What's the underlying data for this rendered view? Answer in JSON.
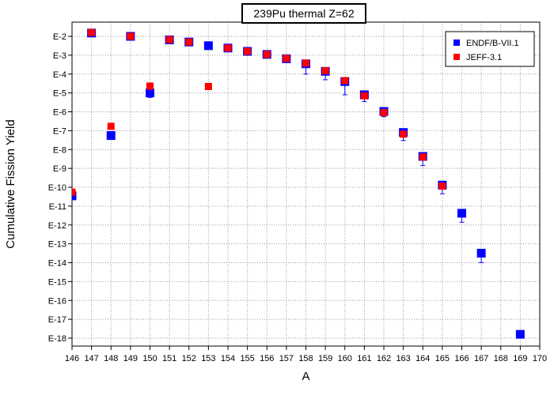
{
  "chart_data": {
    "type": "scatter",
    "title": "239Pu thermal Z=62",
    "xlabel": "A",
    "ylabel": "Cumulative Fission Yield",
    "x_scale": "linear",
    "y_scale": "log",
    "xlim": [
      146,
      170
    ],
    "ylim": [
      1e-18,
      0.01
    ],
    "x_ticks": [
      146,
      147,
      148,
      149,
      150,
      151,
      152,
      153,
      154,
      155,
      156,
      157,
      158,
      159,
      160,
      161,
      162,
      163,
      164,
      165,
      166,
      167,
      168,
      169,
      170
    ],
    "y_ticks": [
      {
        "value": 0.01,
        "label": "E-2"
      },
      {
        "value": 0.001,
        "label": "E-3"
      },
      {
        "value": 0.0001,
        "label": "E-4"
      },
      {
        "value": 1e-05,
        "label": "E-5"
      },
      {
        "value": 1e-06,
        "label": "E-6"
      },
      {
        "value": 1e-07,
        "label": "E-7"
      },
      {
        "value": 1e-08,
        "label": "E-8"
      },
      {
        "value": 1e-09,
        "label": "E-9"
      },
      {
        "value": 1e-10,
        "label": "E-10"
      },
      {
        "value": 1e-11,
        "label": "E-11"
      },
      {
        "value": 1e-12,
        "label": "E-12"
      },
      {
        "value": 1e-13,
        "label": "E-13"
      },
      {
        "value": 1e-14,
        "label": "E-14"
      },
      {
        "value": 1e-15,
        "label": "E-15"
      },
      {
        "value": 1e-16,
        "label": "E-16"
      },
      {
        "value": 1e-17,
        "label": "E-17"
      },
      {
        "value": 1e-18,
        "label": "E-18"
      }
    ],
    "grid": true,
    "legend": "top-right",
    "series": [
      {
        "name": "ENDF/B-VII.1",
        "color": "#0000ff",
        "marker": "square",
        "points": [
          {
            "x": 146,
            "y": 3.5e-11
          },
          {
            "x": 147,
            "y": 0.015
          },
          {
            "x": 148,
            "y": 5.5e-08,
            "err_lo": 2e-08
          },
          {
            "x": 149,
            "y": 0.01
          },
          {
            "x": 150,
            "y": 1e-05,
            "err_lo": 4.2e-06
          },
          {
            "x": 151,
            "y": 0.0065
          },
          {
            "x": 152,
            "y": 0.005
          },
          {
            "x": 153,
            "y": 0.0032
          },
          {
            "x": 154,
            "y": 0.0024
          },
          {
            "x": 155,
            "y": 0.0016
          },
          {
            "x": 156,
            "y": 0.0011
          },
          {
            "x": 157,
            "y": 0.00065
          },
          {
            "x": 158,
            "y": 0.00035,
            "err_lo": 0.00025
          },
          {
            "x": 159,
            "y": 0.00014,
            "err_lo": 9e-05
          },
          {
            "x": 160,
            "y": 4e-05,
            "err_lo": 3.2e-05
          },
          {
            "x": 161,
            "y": 8e-06,
            "err_lo": 4.5e-06
          },
          {
            "x": 162,
            "y": 1.05e-06,
            "err_lo": 5e-07
          },
          {
            "x": 163,
            "y": 8e-08,
            "err_lo": 5e-08
          },
          {
            "x": 164,
            "y": 4.3e-09,
            "err_lo": 2.9e-09
          },
          {
            "x": 165,
            "y": 1.3e-10,
            "err_lo": 8.5e-11
          },
          {
            "x": 166,
            "y": 4.2e-12,
            "err_lo": 2.8e-12
          },
          {
            "x": 167,
            "y": 3.2e-14,
            "err_lo": 2.2e-14
          },
          {
            "x": 169,
            "y": 1.6e-18
          }
        ]
      },
      {
        "name": "JEFF-3.1",
        "color": "#ff0000",
        "marker": "square",
        "points": [
          {
            "x": 146,
            "y": 5.5e-11
          },
          {
            "x": 147,
            "y": 0.016
          },
          {
            "x": 148,
            "y": 1.7e-07
          },
          {
            "x": 149,
            "y": 0.01
          },
          {
            "x": 150,
            "y": 2.3e-05
          },
          {
            "x": 151,
            "y": 0.0067
          },
          {
            "x": 152,
            "y": 0.005
          },
          {
            "x": 153,
            "y": 2.2e-05
          },
          {
            "x": 154,
            "y": 0.0024
          },
          {
            "x": 155,
            "y": 0.0016
          },
          {
            "x": 156,
            "y": 0.0011
          },
          {
            "x": 157,
            "y": 0.00068
          },
          {
            "x": 158,
            "y": 0.00038
          },
          {
            "x": 159,
            "y": 0.00015
          },
          {
            "x": 160,
            "y": 4.5e-05
          },
          {
            "x": 161,
            "y": 7e-06
          },
          {
            "x": 162,
            "y": 9e-07
          },
          {
            "x": 163,
            "y": 6.5e-08
          },
          {
            "x": 164,
            "y": 4e-09
          },
          {
            "x": 165,
            "y": 1.15e-10
          }
        ]
      }
    ]
  }
}
